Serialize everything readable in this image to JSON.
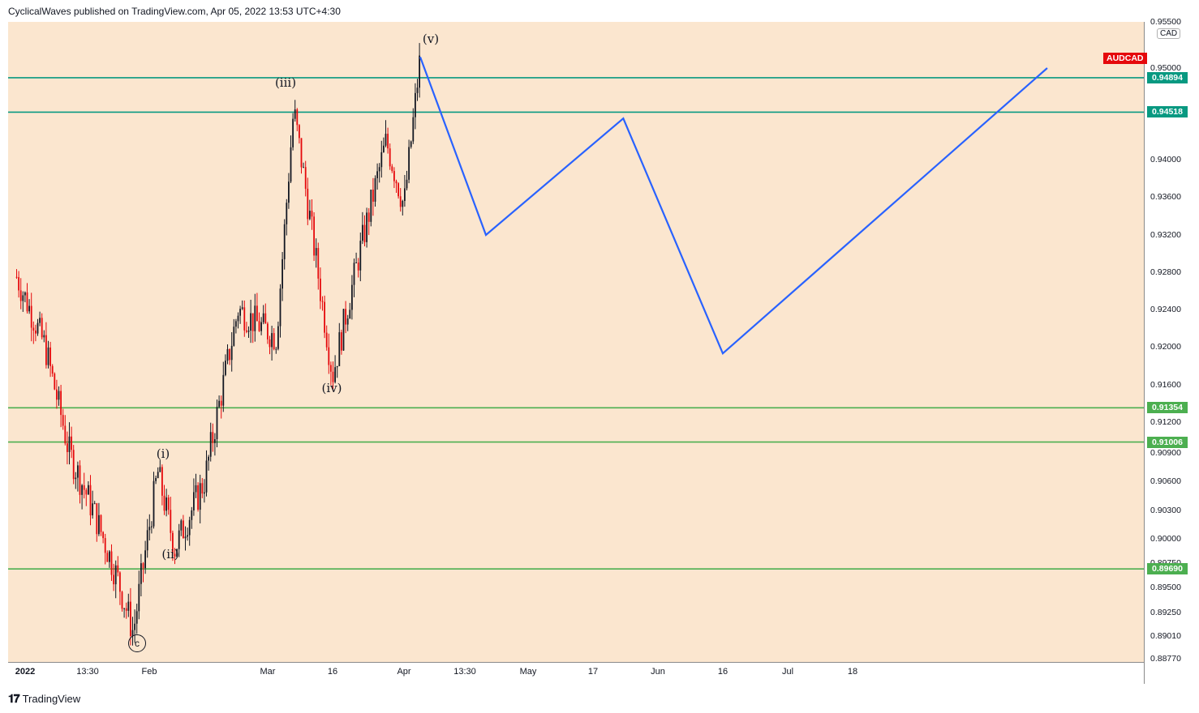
{
  "header": {
    "text": "CyclicalWaves published on TradingView.com, Apr 05, 2022 13:53 UTC+4:30"
  },
  "symbol": {
    "label": "AUDCAD",
    "currency": "CAD",
    "color": "#e5090c"
  },
  "footer": {
    "brand": "TradingView",
    "icon": "tradingview-logo-icon"
  },
  "colors": {
    "background": "#fbe6cf",
    "projection": "#2962ff",
    "level_dark": "#089981",
    "level_light": "#4caf50"
  },
  "chart_data": {
    "type": "candlestick",
    "title": "",
    "price_axis_ticks": [
      "0.95500",
      "0.95000",
      "0.94000",
      "0.93600",
      "0.93200",
      "0.92800",
      "0.92400",
      "0.92000",
      "0.91600",
      "0.91200",
      "0.90900",
      "0.90600",
      "0.90300",
      "0.90000",
      "0.89750",
      "0.89500",
      "0.89250",
      "0.89010",
      "0.88770"
    ],
    "time_axis_ticks": [
      "2022",
      "13:30",
      "Feb",
      "Mar",
      "16",
      "Apr",
      "13:30",
      "May",
      "17",
      "Jun",
      "16",
      "Jul",
      "18"
    ],
    "horizontal_levels": [
      {
        "value": "0.94894",
        "color": "#089981"
      },
      {
        "value": "0.94518",
        "color": "#089981"
      },
      {
        "value": "0.91354",
        "color": "#4caf50"
      },
      {
        "value": "0.91006",
        "color": "#4caf50"
      },
      {
        "value": "0.89690",
        "color": "#4caf50"
      }
    ],
    "wave_labels": [
      {
        "text": "c",
        "circled": true
      },
      {
        "text": "(i)"
      },
      {
        "text": "(ii)"
      },
      {
        "text": "(iii)"
      },
      {
        "text": "(iv)"
      },
      {
        "text": "(v)"
      }
    ],
    "price_path": [
      {
        "date": "2021-12-31",
        "price": 0.9275
      },
      {
        "date": "2022-01-06",
        "price": 0.92
      },
      {
        "date": "2022-01-12",
        "price": 0.909
      },
      {
        "date": "2022-01-18",
        "price": 0.903
      },
      {
        "date": "2022-01-24",
        "price": 0.896
      },
      {
        "date": "2022-01-28",
        "price": 0.8905
      },
      {
        "date": "2022-02-03",
        "price": 0.907
      },
      {
        "date": "2022-02-07",
        "price": 0.899
      },
      {
        "date": "2022-02-14",
        "price": 0.906
      },
      {
        "date": "2022-02-22",
        "price": 0.924
      },
      {
        "date": "2022-03-03",
        "price": 0.921
      },
      {
        "date": "2022-03-07",
        "price": 0.9455
      },
      {
        "date": "2022-03-11",
        "price": 0.933
      },
      {
        "date": "2022-03-16",
        "price": 0.917
      },
      {
        "date": "2022-03-22",
        "price": 0.93
      },
      {
        "date": "2022-03-28",
        "price": 0.942
      },
      {
        "date": "2022-04-01",
        "price": 0.935
      },
      {
        "date": "2022-04-05",
        "price": 0.9512
      }
    ],
    "projection": [
      {
        "date": "2022-04-05",
        "price": 0.9512
      },
      {
        "date": "2022-04-21",
        "price": 0.932
      },
      {
        "date": "2022-05-24",
        "price": 0.9445
      },
      {
        "date": "2022-06-16",
        "price": 0.9193
      },
      {
        "date": "2022-08-31",
        "price": 0.95
      }
    ]
  }
}
